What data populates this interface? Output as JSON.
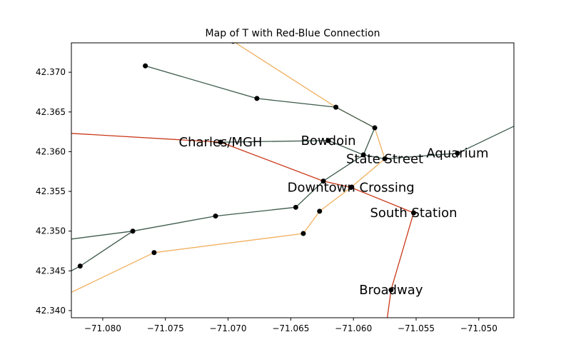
{
  "title": "Map of T with Red-Blue Connection",
  "colors": {
    "red_line": "#c93a1a",
    "blue_line": "#3c5a4a",
    "orange_line": "#f0b060",
    "station": "#000000"
  },
  "chart_data": {
    "type": "map",
    "title": "Map of T with Red-Blue Connection",
    "xlim": [
      -71.0825,
      -71.0472
    ],
    "ylim": [
      42.3391,
      42.3737
    ],
    "xticks": [
      -71.08,
      -71.075,
      -71.07,
      -71.065,
      -71.06,
      -71.055,
      -71.05
    ],
    "xtick_labels": [
      "−71.080",
      "−71.075",
      "−71.070",
      "−71.065",
      "−71.060",
      "−71.055",
      "−71.050"
    ],
    "yticks": [
      42.34,
      42.345,
      42.35,
      42.355,
      42.36,
      42.365,
      42.37
    ],
    "ytick_labels": [
      "42.340",
      "42.345",
      "42.350",
      "42.355",
      "42.360",
      "42.365",
      "42.370"
    ],
    "grid": false,
    "lines": [
      {
        "color_key": "orange_line",
        "points": [
          [
            -71.0825,
            42.3423
          ],
          [
            -71.0759,
            42.3473
          ],
          [
            -71.064,
            42.3497
          ],
          [
            -71.0627,
            42.3525
          ],
          [
            -71.0602,
            42.3555
          ],
          [
            -71.0575,
            42.3591
          ],
          [
            -71.0583,
            42.363
          ],
          [
            -71.0614,
            42.3656
          ],
          [
            -71.0696,
            42.3739
          ]
        ]
      },
      {
        "color_key": "blue_line",
        "points": [
          [
            -71.0825,
            42.349
          ],
          [
            -71.0776,
            42.35
          ],
          [
            -71.071,
            42.3519
          ],
          [
            -71.0646,
            42.353
          ],
          [
            -71.0624,
            42.3563
          ],
          [
            -71.0592,
            42.3596
          ],
          [
            -71.0575,
            42.3591
          ],
          [
            -71.0517,
            42.3598
          ],
          [
            -71.0472,
            42.3632
          ]
        ]
      },
      {
        "color_key": "blue_line",
        "points": [
          [
            -71.0825,
            42.345
          ],
          [
            -71.0818,
            42.3456
          ],
          [
            -71.0776,
            42.35
          ]
        ]
      },
      {
        "color_key": "blue_line",
        "points": [
          [
            -71.0766,
            42.3708
          ],
          [
            -71.0677,
            42.3667
          ],
          [
            -71.0614,
            42.3656
          ],
          [
            -71.0583,
            42.363
          ],
          [
            -71.0592,
            42.3596
          ]
        ]
      },
      {
        "color_key": "blue_line",
        "points": [
          [
            -71.0706,
            42.3612
          ],
          [
            -71.062,
            42.3614
          ],
          [
            -71.0592,
            42.3596
          ]
        ]
      },
      {
        "color_key": "red_line",
        "points": [
          [
            -71.0825,
            42.3623
          ],
          [
            -71.0706,
            42.3612
          ],
          [
            -71.0624,
            42.3563
          ],
          [
            -71.0602,
            42.3555
          ],
          [
            -71.0552,
            42.3523
          ],
          [
            -71.057,
            42.3426
          ],
          [
            -71.0573,
            42.3391
          ]
        ]
      }
    ],
    "stations": [
      {
        "name": "",
        "x": -71.0818,
        "y": 42.3456
      },
      {
        "name": "",
        "x": -71.0776,
        "y": 42.35
      },
      {
        "name": "",
        "x": -71.0759,
        "y": 42.3473
      },
      {
        "name": "",
        "x": -71.071,
        "y": 42.3519
      },
      {
        "name": "",
        "x": -71.0646,
        "y": 42.353
      },
      {
        "name": "",
        "x": -71.064,
        "y": 42.3497
      },
      {
        "name": "",
        "x": -71.0627,
        "y": 42.3525
      },
      {
        "name": "",
        "x": -71.0766,
        "y": 42.3708
      },
      {
        "name": "",
        "x": -71.0677,
        "y": 42.3667
      },
      {
        "name": "",
        "x": -71.0614,
        "y": 42.3656
      },
      {
        "name": "",
        "x": -71.0696,
        "y": 42.3739
      },
      {
        "name": "",
        "x": -71.0583,
        "y": 42.363
      },
      {
        "name": "",
        "x": -71.0592,
        "y": 42.3596
      },
      {
        "name": "",
        "x": -71.0624,
        "y": 42.3563
      },
      {
        "name": "Charles/MGH",
        "x": -71.0706,
        "y": 42.3612
      },
      {
        "name": "Bowdoin",
        "x": -71.062,
        "y": 42.3614
      },
      {
        "name": "State Street",
        "x": -71.0575,
        "y": 42.3591
      },
      {
        "name": "Aquarium",
        "x": -71.0517,
        "y": 42.3598
      },
      {
        "name": "Downtown Crossing",
        "x": -71.0602,
        "y": 42.3555
      },
      {
        "name": "South Station",
        "x": -71.0552,
        "y": 42.3523
      },
      {
        "name": "Broadway",
        "x": -71.057,
        "y": 42.3426
      }
    ]
  }
}
